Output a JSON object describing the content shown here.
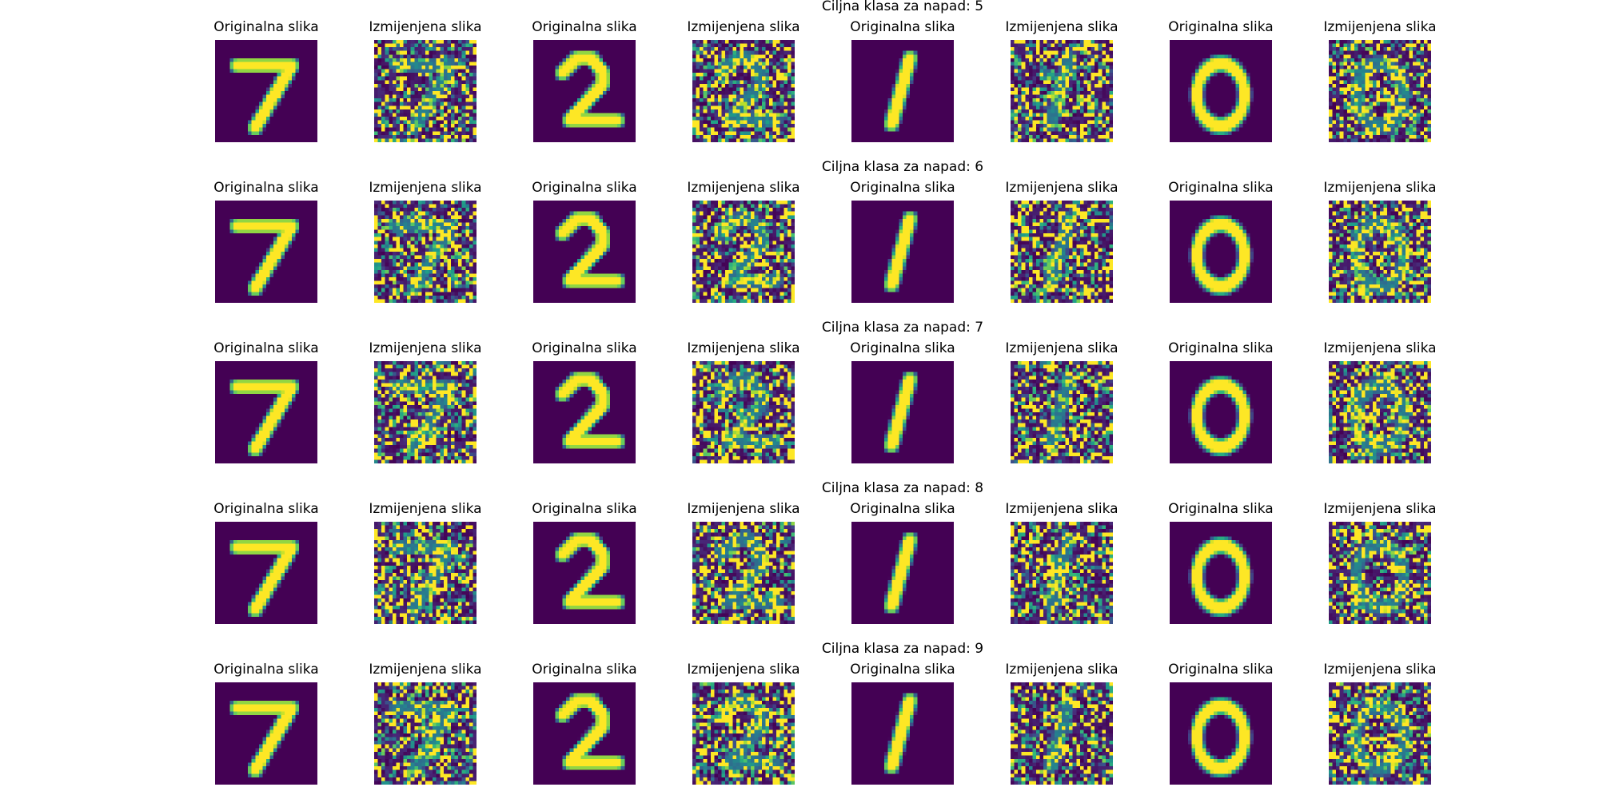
{
  "figure": {
    "rows": [
      {
        "suptitle": "Ciljna klasa za napad: 5"
      },
      {
        "suptitle": "Ciljna klasa za napad: 6"
      },
      {
        "suptitle": "Ciljna klasa za napad: 7"
      },
      {
        "suptitle": "Ciljna klasa za napad: 8"
      },
      {
        "suptitle": "Ciljna klasa za napad: 9"
      }
    ],
    "panel_titles": {
      "original": "Originalna slika",
      "modified": "Izmijenjena slika"
    },
    "digits": [
      "7",
      "2",
      "1",
      "0"
    ],
    "colormap": {
      "name": "viridis",
      "background": "#440154",
      "foreground": "#fde725"
    }
  }
}
